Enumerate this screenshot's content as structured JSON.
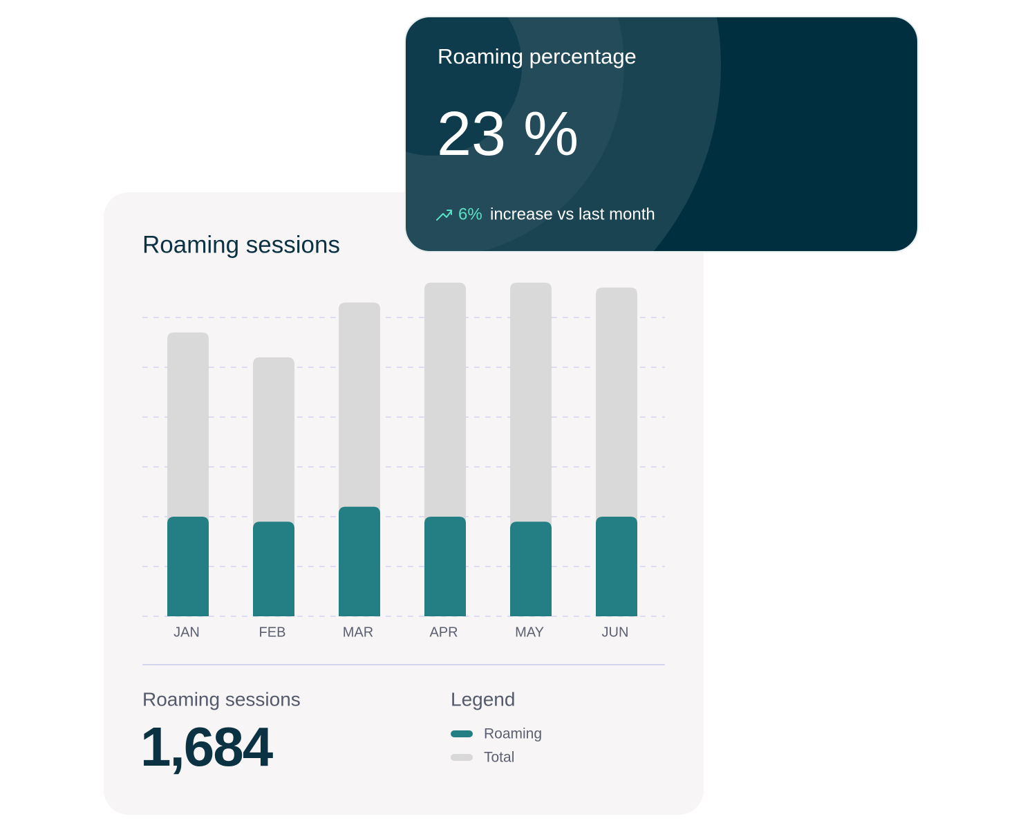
{
  "percentage_card": {
    "title": "Roaming percentage",
    "value": "23 %",
    "change": "6%",
    "change_text": "increase vs last month"
  },
  "chart_data": {
    "type": "bar",
    "title": "Roaming sessions",
    "categories": [
      "JAN",
      "FEB",
      "MAR",
      "APR",
      "MAY",
      "JUN"
    ],
    "series": [
      {
        "name": "Roaming",
        "color": "#237f83",
        "values": [
          2.0,
          1.9,
          2.2,
          2.0,
          1.9,
          2.0
        ]
      },
      {
        "name": "Total",
        "color": "#d9d9d9",
        "values": [
          5.7,
          5.2,
          6.3,
          6.7,
          6.7,
          6.6
        ]
      }
    ],
    "ylim": [
      0,
      7
    ],
    "yticks": [
      0,
      1,
      2,
      3,
      4,
      5,
      6
    ],
    "grid": true
  },
  "summary": {
    "label": "Roaming sessions",
    "value": "1,684",
    "legend_title": "Legend"
  }
}
